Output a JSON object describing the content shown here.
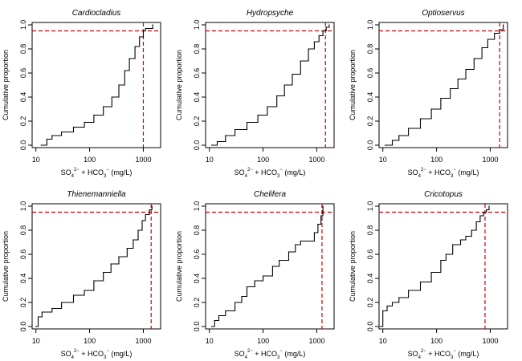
{
  "chart_data": [
    {
      "type": "line",
      "title": "Cardiocladius",
      "xlabel": {
        "base": "SO",
        "sub1": "4",
        "sup1": "2−",
        "mid": " + HCO",
        "sub2": "3",
        "sup2": "−",
        "unit": " (mg/L)"
      },
      "ylabel": "Cumulative proportion",
      "xscale": "log",
      "xlim": [
        8.5,
        2100
      ],
      "ylim": [
        -0.02,
        1.02
      ],
      "xticks": [
        10,
        100,
        1000
      ],
      "xtick_labels": [
        "10",
        "100",
        "1000"
      ],
      "yticks": [
        0.0,
        0.2,
        0.4,
        0.6,
        0.8,
        1.0
      ],
      "ytick_labels": [
        "0.0",
        "0.2",
        "0.4",
        "0.6",
        "0.8",
        "1.0"
      ],
      "reference_x": 1000,
      "reference_y": 0.95,
      "line_color": "#000000",
      "reference_color": "#cc0000",
      "x": [
        12.5,
        16,
        20,
        30,
        50,
        80,
        120,
        180,
        260,
        350,
        450,
        550,
        700,
        850,
        1000,
        1100,
        1500
      ],
      "y": [
        0.0,
        0.05,
        0.08,
        0.11,
        0.15,
        0.19,
        0.25,
        0.32,
        0.4,
        0.5,
        0.62,
        0.72,
        0.82,
        0.9,
        0.95,
        0.97,
        1.0
      ]
    },
    {
      "type": "line",
      "title": "Hydropsyche",
      "xlabel": {
        "base": "SO",
        "sub1": "4",
        "sup1": "2−",
        "mid": " + HCO",
        "sub2": "3",
        "sup2": "−",
        "unit": " (mg/L)"
      },
      "ylabel": "Cumulative proportion",
      "xscale": "log",
      "xlim": [
        8.5,
        2100
      ],
      "ylim": [
        -0.02,
        1.02
      ],
      "xticks": [
        10,
        100,
        1000
      ],
      "xtick_labels": [
        "10",
        "100",
        "1000"
      ],
      "yticks": [
        0.0,
        0.2,
        0.4,
        0.6,
        0.8,
        1.0
      ],
      "ytick_labels": [
        "0.0",
        "0.2",
        "0.4",
        "0.6",
        "0.8",
        "1.0"
      ],
      "reference_x": 1450,
      "reference_y": 0.95,
      "line_color": "#000000",
      "reference_color": "#cc0000",
      "x": [
        11,
        14,
        20,
        30,
        50,
        80,
        120,
        180,
        250,
        350,
        500,
        700,
        900,
        1100,
        1300,
        1500,
        1700
      ],
      "y": [
        0.0,
        0.03,
        0.08,
        0.13,
        0.19,
        0.25,
        0.32,
        0.41,
        0.5,
        0.59,
        0.7,
        0.8,
        0.86,
        0.91,
        0.95,
        0.98,
        1.0
      ]
    },
    {
      "type": "line",
      "title": "Optioservus",
      "xlabel": {
        "base": "SO",
        "sub1": "4",
        "sup1": "2−",
        "mid": " + HCO",
        "sub2": "3",
        "sup2": "−",
        "unit": " (mg/L)"
      },
      "ylabel": "Cumulative proportion",
      "xscale": "log",
      "xlim": [
        8.5,
        2100
      ],
      "ylim": [
        -0.02,
        1.02
      ],
      "xticks": [
        10,
        100,
        1000
      ],
      "xtick_labels": [
        "10",
        "100",
        "1000"
      ],
      "yticks": [
        0.0,
        0.2,
        0.4,
        0.6,
        0.8,
        1.0
      ],
      "ytick_labels": [
        "0.0",
        "0.2",
        "0.4",
        "0.6",
        "0.8",
        "1.0"
      ],
      "reference_x": 1500,
      "reference_y": 0.95,
      "line_color": "#000000",
      "reference_color": "#cc0000",
      "x": [
        11,
        15,
        20,
        30,
        50,
        80,
        120,
        180,
        250,
        350,
        500,
        700,
        900,
        1200,
        1500,
        1750
      ],
      "y": [
        0.0,
        0.04,
        0.08,
        0.14,
        0.22,
        0.3,
        0.39,
        0.47,
        0.55,
        0.63,
        0.72,
        0.81,
        0.88,
        0.93,
        0.96,
        1.0
      ]
    },
    {
      "type": "line",
      "title": "Thienemanniella",
      "xlabel": {
        "base": "SO",
        "sub1": "4",
        "sup1": "2−",
        "mid": " + HCO",
        "sub2": "3",
        "sup2": "−",
        "unit": " (mg/L)"
      },
      "ylabel": "Cumulative proportion",
      "xscale": "log",
      "xlim": [
        8.5,
        2100
      ],
      "ylim": [
        -0.02,
        1.02
      ],
      "xticks": [
        10,
        100,
        1000
      ],
      "xtick_labels": [
        "10",
        "100",
        "1000"
      ],
      "yticks": [
        0.0,
        0.2,
        0.4,
        0.6,
        0.8,
        1.0
      ],
      "ytick_labels": [
        "0.0",
        "0.2",
        "0.4",
        "0.6",
        "0.8",
        "1.0"
      ],
      "reference_x": 1400,
      "reference_y": 0.95,
      "line_color": "#000000",
      "reference_color": "#cc0000",
      "x": [
        10,
        11,
        13,
        20,
        30,
        50,
        80,
        120,
        180,
        250,
        350,
        500,
        650,
        800,
        950,
        1100,
        1300,
        1450
      ],
      "y": [
        0.0,
        0.08,
        0.12,
        0.15,
        0.2,
        0.26,
        0.3,
        0.38,
        0.45,
        0.52,
        0.58,
        0.65,
        0.72,
        0.8,
        0.88,
        0.93,
        0.97,
        1.0
      ]
    },
    {
      "type": "line",
      "title": "Chelifera",
      "xlabel": {
        "base": "SO",
        "sub1": "4",
        "sup1": "2−",
        "mid": " + HCO",
        "sub2": "3",
        "sup2": "−",
        "unit": " (mg/L)"
      },
      "ylabel": "Cumulative proportion",
      "xscale": "log",
      "xlim": [
        8.5,
        2100
      ],
      "ylim": [
        -0.02,
        1.02
      ],
      "xticks": [
        10,
        100,
        1000
      ],
      "xtick_labels": [
        "10",
        "100",
        "1000"
      ],
      "yticks": [
        0.0,
        0.2,
        0.4,
        0.6,
        0.8,
        1.0
      ],
      "ytick_labels": [
        "0.0",
        "0.2",
        "0.4",
        "0.6",
        "0.8",
        "1.0"
      ],
      "reference_x": 1250,
      "reference_y": 0.95,
      "line_color": "#000000",
      "reference_color": "#cc0000",
      "x": [
        11,
        12.5,
        15,
        20,
        30,
        40,
        50,
        70,
        100,
        150,
        200,
        300,
        400,
        500,
        700,
        900,
        1050,
        1200,
        1300
      ],
      "y": [
        0.0,
        0.05,
        0.09,
        0.13,
        0.2,
        0.25,
        0.33,
        0.38,
        0.42,
        0.5,
        0.55,
        0.62,
        0.68,
        0.71,
        0.71,
        0.78,
        0.85,
        0.92,
        1.0
      ]
    },
    {
      "type": "line",
      "title": "Cricotopus",
      "xlabel": {
        "base": "SO",
        "sub1": "4",
        "sup1": "2−",
        "mid": " + HCO",
        "sub2": "3",
        "sup2": "−",
        "unit": " (mg/L)"
      },
      "ylabel": "Cumulative proportion",
      "xscale": "log",
      "xlim": [
        8.5,
        2100
      ],
      "ylim": [
        -0.02,
        1.02
      ],
      "xticks": [
        10,
        100,
        1000
      ],
      "xtick_labels": [
        "10",
        "100",
        "1000"
      ],
      "yticks": [
        0.0,
        0.2,
        0.4,
        0.6,
        0.8,
        1.0
      ],
      "ytick_labels": [
        "0.0",
        "0.2",
        "0.4",
        "0.6",
        "0.8",
        "1.0"
      ],
      "reference_x": 800,
      "reference_y": 0.95,
      "line_color": "#000000",
      "reference_color": "#cc0000",
      "x": [
        9,
        10,
        12,
        15,
        20,
        30,
        50,
        80,
        120,
        150,
        200,
        280,
        350,
        450,
        550,
        650,
        750,
        850,
        950
      ],
      "y": [
        0.0,
        0.13,
        0.17,
        0.2,
        0.24,
        0.3,
        0.37,
        0.45,
        0.55,
        0.6,
        0.68,
        0.72,
        0.75,
        0.8,
        0.87,
        0.92,
        0.95,
        0.97,
        1.0
      ]
    }
  ]
}
